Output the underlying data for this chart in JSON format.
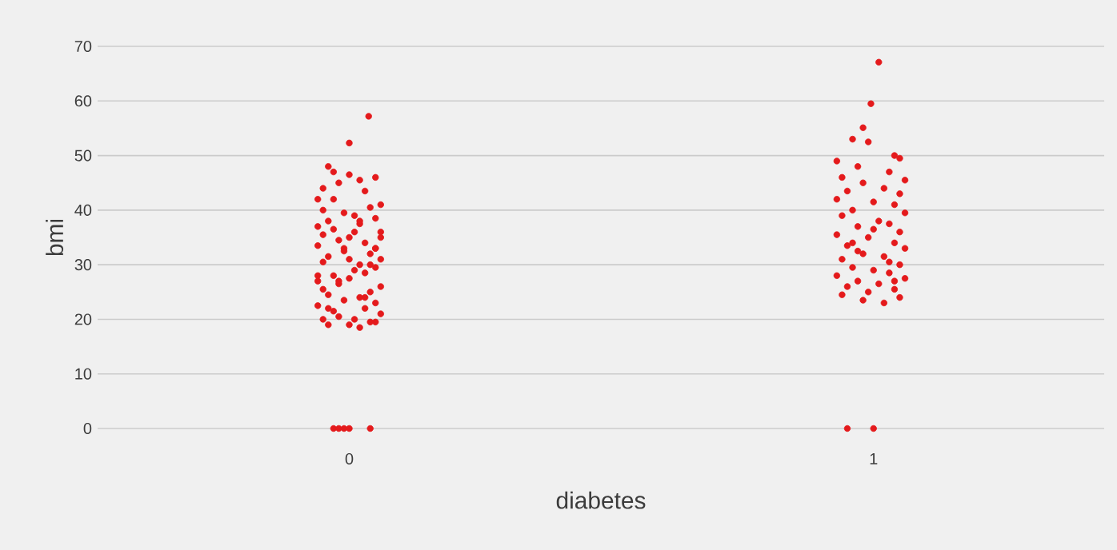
{
  "chart_data": {
    "type": "scatter",
    "xlabel": "diabetes",
    "ylabel": "bmi",
    "xlim": [
      -0.48,
      1.44
    ],
    "xticks": [
      0,
      1
    ],
    "ylim": [
      0,
      70
    ],
    "yticks": [
      0,
      10,
      20,
      30,
      40,
      50,
      60,
      70
    ],
    "grid": "y",
    "marker": "circle",
    "series": [
      {
        "color": "#e41a1c",
        "x": [
          0.037,
          0.0,
          -0.03,
          -0.02,
          -0.01,
          0.0,
          0.04,
          -0.04,
          -0.03,
          0.0,
          0.02,
          0.05,
          -0.05,
          -0.02,
          0.03,
          -0.06,
          0.06,
          -0.05,
          0.04,
          -0.01,
          0.01,
          -0.04,
          0.05,
          -0.06,
          0.02,
          0.06,
          -0.03,
          0.0,
          -0.05,
          0.03,
          -0.02,
          0.05,
          -0.06,
          0.04,
          -0.01,
          0.06,
          -0.04,
          0.02,
          -0.05,
          0.01,
          0.05,
          -0.03,
          0.03,
          -0.06,
          0.0,
          0.06,
          -0.02,
          0.04,
          -0.05,
          0.02,
          -0.04,
          0.05,
          -0.01,
          0.03,
          -0.06,
          0.06,
          -0.03,
          0.01,
          -0.02,
          0.04,
          -0.04,
          0.02,
          0.0,
          -0.05,
          0.05,
          0.03,
          -0.01,
          -0.03,
          0.01,
          0.04,
          -0.02,
          0.02,
          -0.04,
          0.06,
          0.0,
          -0.06,
          0.05
        ],
        "values": [
          57.2,
          52.3,
          0,
          0,
          0,
          0,
          0,
          48,
          47,
          46.5,
          45.5,
          46,
          44,
          45,
          43.5,
          42,
          41,
          40,
          40.5,
          39.5,
          39,
          38,
          38.5,
          37,
          37.5,
          36,
          36.5,
          35,
          35.5,
          34,
          34.5,
          33,
          33.5,
          32,
          32.5,
          31,
          31.5,
          30,
          30.5,
          29,
          29.5,
          28,
          28.5,
          27,
          27.5,
          26,
          26.5,
          25,
          25.5,
          24,
          24.5,
          23,
          23.5,
          22,
          22.5,
          21,
          21.5,
          20,
          20.5,
          19.5,
          19,
          18.5,
          19,
          20,
          19.5,
          24,
          33,
          42,
          36,
          30,
          27,
          38,
          22,
          35,
          31,
          28,
          33
        ]
      },
      {
        "color": "#e41a1c",
        "x": [
          1.01,
          0.995,
          0.98,
          0.95,
          1.0,
          0.96,
          0.99,
          1.04,
          0.93,
          1.05,
          0.97,
          1.03,
          0.94,
          1.06,
          0.98,
          1.02,
          0.95,
          1.05,
          0.93,
          1.0,
          1.04,
          0.96,
          1.06,
          0.94,
          1.01,
          1.03,
          0.97,
          1.05,
          0.93,
          0.99,
          1.04,
          0.95,
          1.06,
          0.98,
          1.02,
          0.94,
          1.05,
          0.96,
          1.0,
          1.03,
          0.93,
          1.06,
          0.97,
          1.01,
          0.95,
          1.04,
          0.99,
          0.94,
          1.05,
          0.98,
          1.02,
          0.96,
          1.03,
          1.0,
          0.97,
          1.04
        ],
        "values": [
          67.1,
          59.5,
          55.1,
          0,
          0,
          53,
          52.5,
          50,
          49,
          49.5,
          48,
          47,
          46,
          45.5,
          45,
          44,
          43.5,
          43,
          42,
          41.5,
          41,
          40,
          39.5,
          39,
          38,
          37.5,
          37,
          36,
          35.5,
          35,
          34,
          33.5,
          33,
          32,
          31.5,
          31,
          30,
          29.5,
          29,
          28.5,
          28,
          27.5,
          27,
          26.5,
          26,
          25.5,
          25,
          24.5,
          24,
          23.5,
          23,
          34,
          30.5,
          36.5,
          32.5,
          27
        ]
      }
    ]
  }
}
